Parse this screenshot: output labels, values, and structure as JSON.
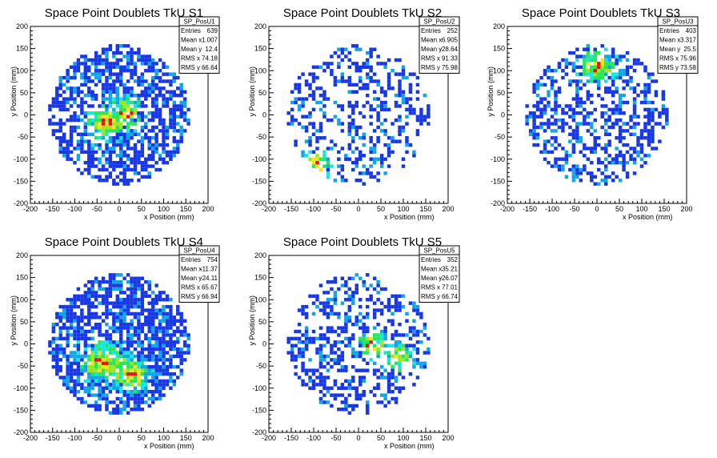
{
  "chart_data": [
    {
      "type": "heatmap",
      "title": "Space Point Doublets TkU S1",
      "xlabel": "x Position (mm)",
      "ylabel": "y Position (mm)",
      "xlim": [
        -200,
        200
      ],
      "ylim": [
        -200,
        200
      ],
      "x_ticks": [
        "-200",
        "-150",
        "-100",
        "-50",
        "0",
        "50",
        "100",
        "150",
        "200"
      ],
      "y_ticks": [
        "-200",
        "-150",
        "-100",
        "-50",
        "0",
        "50",
        "100",
        "150",
        "200"
      ],
      "stats": {
        "name": "SP_PosU1",
        "rows": [
          {
            "label": "Entries",
            "value": "639"
          },
          {
            "label": "Mean x",
            "value": "1.007"
          },
          {
            "label": "Mean y",
            "value": "12.4"
          },
          {
            "label": "RMS x",
            "value": "74.18"
          },
          {
            "label": "RMS y",
            "value": "66.64"
          }
        ]
      },
      "hotspots": [
        {
          "x": -30,
          "y": -20,
          "s": 25
        },
        {
          "x": 20,
          "y": 10,
          "s": 20
        }
      ],
      "seed": 11,
      "density": 0.62
    },
    {
      "type": "heatmap",
      "title": "Space Point Doublets TkU S2",
      "xlabel": "x Position (mm)",
      "ylabel": "y Position (mm)",
      "xlim": [
        -200,
        200
      ],
      "ylim": [
        -200,
        200
      ],
      "x_ticks": [
        "-200",
        "-150",
        "-100",
        "-50",
        "0",
        "50",
        "100",
        "150",
        "200"
      ],
      "y_ticks": [
        "-200",
        "-150",
        "-100",
        "-50",
        "0",
        "50",
        "100",
        "150",
        "200"
      ],
      "stats": {
        "name": "SP_PosU2",
        "rows": [
          {
            "label": "Entries",
            "value": "252"
          },
          {
            "label": "Mean x",
            "value": "6.905"
          },
          {
            "label": "Mean y",
            "value": "-28.64"
          },
          {
            "label": "RMS x",
            "value": "91.33"
          },
          {
            "label": "RMS y",
            "value": "75.98"
          }
        ]
      },
      "hotspots": [
        {
          "x": -90,
          "y": -110,
          "s": 20
        }
      ],
      "seed": 22,
      "density": 0.32
    },
    {
      "type": "heatmap",
      "title": "Space Point Doublets TkU S3",
      "xlabel": "x Position (mm)",
      "ylabel": "y Position (mm)",
      "xlim": [
        -200,
        200
      ],
      "ylim": [
        -200,
        200
      ],
      "x_ticks": [
        "-200",
        "-150",
        "-100",
        "-50",
        "0",
        "50",
        "100",
        "150",
        "200"
      ],
      "y_ticks": [
        "-200",
        "-150",
        "-100",
        "-50",
        "0",
        "50",
        "100",
        "150",
        "200"
      ],
      "stats": {
        "name": "SP_PosU3",
        "rows": [
          {
            "label": "Entries",
            "value": "403"
          },
          {
            "label": "Mean x",
            "value": "3.317"
          },
          {
            "label": "Mean y",
            "value": "25.5"
          },
          {
            "label": "RMS x",
            "value": "75.96"
          },
          {
            "label": "RMS y",
            "value": "73.58"
          }
        ]
      },
      "hotspots": [
        {
          "x": 0,
          "y": 110,
          "s": 25
        }
      ],
      "seed": 33,
      "density": 0.45
    },
    {
      "type": "heatmap",
      "title": "Space Point Doublets TkU S4",
      "xlabel": "x Position (mm)",
      "ylabel": "y Position (mm)",
      "xlim": [
        -200,
        200
      ],
      "ylim": [
        -200,
        200
      ],
      "x_ticks": [
        "-200",
        "-150",
        "-100",
        "-50",
        "0",
        "50",
        "100",
        "150",
        "200"
      ],
      "y_ticks": [
        "-200",
        "-150",
        "-100",
        "-50",
        "0",
        "50",
        "100",
        "150",
        "200"
      ],
      "stats": {
        "name": "SP_PosU4",
        "rows": [
          {
            "label": "Entries",
            "value": "754"
          },
          {
            "label": "Mean x",
            "value": "-11.37"
          },
          {
            "label": "Mean y",
            "value": "-24.11"
          },
          {
            "label": "RMS x",
            "value": "65.67"
          },
          {
            "label": "RMS y",
            "value": "66.94"
          }
        ]
      },
      "hotspots": [
        {
          "x": -40,
          "y": -40,
          "s": 30
        },
        {
          "x": 30,
          "y": -70,
          "s": 25
        }
      ],
      "seed": 44,
      "density": 0.7
    },
    {
      "type": "heatmap",
      "title": "Space Point Doublets TkU S5",
      "xlabel": "x Position (mm)",
      "ylabel": "y Position (mm)",
      "xlim": [
        -200,
        200
      ],
      "ylim": [
        -200,
        200
      ],
      "x_ticks": [
        "-200",
        "-150",
        "-100",
        "-50",
        "0",
        "50",
        "100",
        "150",
        "200"
      ],
      "y_ticks": [
        "-200",
        "-150",
        "-100",
        "-50",
        "0",
        "50",
        "100",
        "150",
        "200"
      ],
      "stats": {
        "name": "SP_PosU5",
        "rows": [
          {
            "label": "Entries",
            "value": "352"
          },
          {
            "label": "Mean x",
            "value": "35.21"
          },
          {
            "label": "Mean y",
            "value": "-26.07"
          },
          {
            "label": "RMS x",
            "value": "77.01"
          },
          {
            "label": "RMS y",
            "value": "66.74"
          }
        ]
      },
      "hotspots": [
        {
          "x": 30,
          "y": 0,
          "s": 20
        },
        {
          "x": 90,
          "y": -30,
          "s": 20
        }
      ],
      "seed": 55,
      "density": 0.42
    }
  ],
  "colors": {
    "blue": "#1736e6",
    "lightblue": "#0fa6e8",
    "cyan": "#14e6e6",
    "green": "#26e65a",
    "lime": "#9be61e",
    "yellow": "#f2e61a",
    "orange": "#f28c14",
    "red": "#e61414"
  }
}
